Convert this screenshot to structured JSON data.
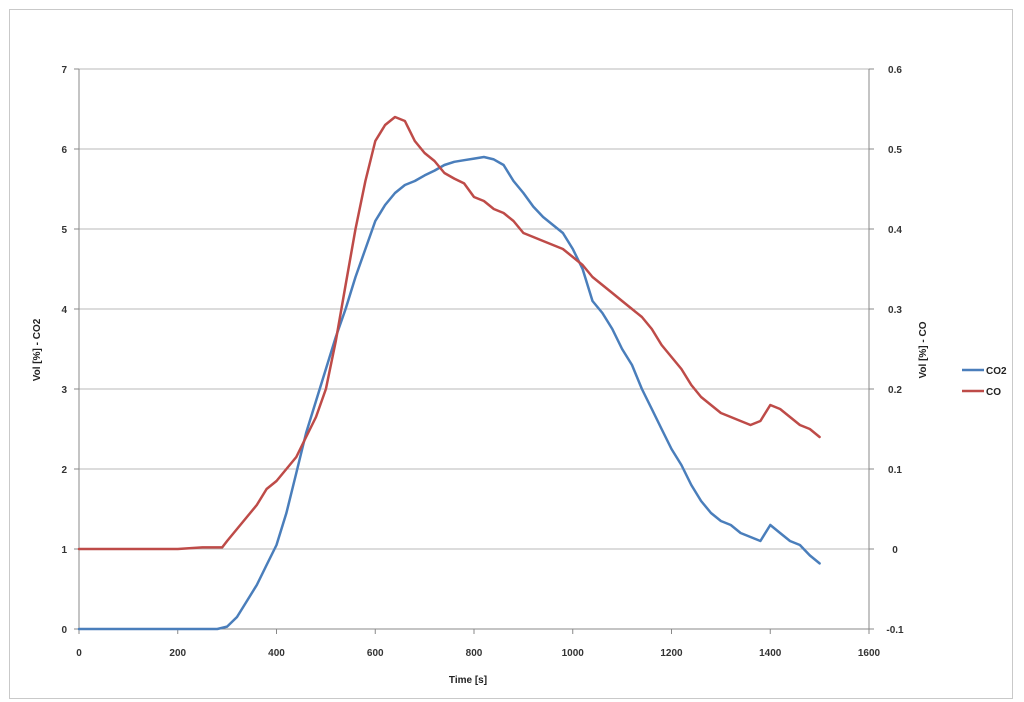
{
  "chart_data": {
    "type": "line",
    "xlabel": "Time [s]",
    "ylabel_left": "Vol [%] - CO2",
    "ylabel_right": "Vol [%] - CO",
    "xlim": [
      0,
      1600
    ],
    "ylim_left": [
      0,
      7
    ],
    "ylim_right": [
      -0.1,
      0.6
    ],
    "x_ticks": [
      "0",
      "200",
      "400",
      "600",
      "800",
      "1000",
      "1200",
      "1400",
      "1600"
    ],
    "y_left_ticks": [
      "0",
      "1",
      "2",
      "3",
      "4",
      "5",
      "6",
      "7"
    ],
    "y_right_ticks": [
      "-0.1",
      "0",
      "0.1",
      "0.2",
      "0.3",
      "0.4",
      "0.5",
      "0.6"
    ],
    "grid": "horizontal",
    "legend_position": "right",
    "series": [
      {
        "name": "CO2",
        "axis": "left",
        "color": "#4a7ebb",
        "points": [
          [
            0,
            0
          ],
          [
            100,
            0
          ],
          [
            200,
            0
          ],
          [
            280,
            0
          ],
          [
            300,
            0.03
          ],
          [
            320,
            0.15
          ],
          [
            340,
            0.35
          ],
          [
            360,
            0.55
          ],
          [
            380,
            0.8
          ],
          [
            400,
            1.05
          ],
          [
            420,
            1.45
          ],
          [
            440,
            1.95
          ],
          [
            460,
            2.45
          ],
          [
            480,
            2.85
          ],
          [
            500,
            3.25
          ],
          [
            520,
            3.65
          ],
          [
            540,
            4.0
          ],
          [
            560,
            4.4
          ],
          [
            580,
            4.75
          ],
          [
            600,
            5.1
          ],
          [
            620,
            5.3
          ],
          [
            640,
            5.45
          ],
          [
            660,
            5.55
          ],
          [
            680,
            5.6
          ],
          [
            700,
            5.67
          ],
          [
            720,
            5.73
          ],
          [
            740,
            5.8
          ],
          [
            760,
            5.84
          ],
          [
            780,
            5.86
          ],
          [
            800,
            5.88
          ],
          [
            820,
            5.9
          ],
          [
            840,
            5.87
          ],
          [
            860,
            5.8
          ],
          [
            880,
            5.6
          ],
          [
            900,
            5.45
          ],
          [
            920,
            5.28
          ],
          [
            940,
            5.15
          ],
          [
            960,
            5.05
          ],
          [
            980,
            4.95
          ],
          [
            1000,
            4.75
          ],
          [
            1020,
            4.5
          ],
          [
            1040,
            4.1
          ],
          [
            1060,
            3.95
          ],
          [
            1080,
            3.75
          ],
          [
            1100,
            3.5
          ],
          [
            1120,
            3.3
          ],
          [
            1140,
            3.0
          ],
          [
            1160,
            2.75
          ],
          [
            1180,
            2.5
          ],
          [
            1200,
            2.25
          ],
          [
            1220,
            2.05
          ],
          [
            1240,
            1.8
          ],
          [
            1260,
            1.6
          ],
          [
            1280,
            1.45
          ],
          [
            1300,
            1.35
          ],
          [
            1320,
            1.3
          ],
          [
            1340,
            1.2
          ],
          [
            1360,
            1.15
          ],
          [
            1380,
            1.1
          ],
          [
            1400,
            1.3
          ],
          [
            1420,
            1.2
          ],
          [
            1440,
            1.1
          ],
          [
            1460,
            1.05
          ],
          [
            1480,
            0.92
          ],
          [
            1500,
            0.82
          ]
        ]
      },
      {
        "name": "CO",
        "axis": "right",
        "color": "#be4b48",
        "points": [
          [
            0,
            0
          ],
          [
            50,
            0
          ],
          [
            100,
            0
          ],
          [
            150,
            0
          ],
          [
            200,
            0
          ],
          [
            250,
            0.002
          ],
          [
            290,
            0.002
          ],
          [
            300,
            0.01
          ],
          [
            320,
            0.025
          ],
          [
            340,
            0.04
          ],
          [
            360,
            0.055
          ],
          [
            380,
            0.075
          ],
          [
            400,
            0.085
          ],
          [
            420,
            0.1
          ],
          [
            440,
            0.115
          ],
          [
            460,
            0.14
          ],
          [
            480,
            0.165
          ],
          [
            500,
            0.2
          ],
          [
            520,
            0.26
          ],
          [
            540,
            0.33
          ],
          [
            560,
            0.4
          ],
          [
            580,
            0.46
          ],
          [
            600,
            0.51
          ],
          [
            620,
            0.53
          ],
          [
            640,
            0.54
          ],
          [
            660,
            0.535
          ],
          [
            680,
            0.51
          ],
          [
            700,
            0.495
          ],
          [
            720,
            0.485
          ],
          [
            740,
            0.47
          ],
          [
            760,
            0.463
          ],
          [
            780,
            0.457
          ],
          [
            800,
            0.44
          ],
          [
            820,
            0.435
          ],
          [
            840,
            0.425
          ],
          [
            860,
            0.42
          ],
          [
            880,
            0.41
          ],
          [
            900,
            0.395
          ],
          [
            920,
            0.39
          ],
          [
            940,
            0.385
          ],
          [
            960,
            0.38
          ],
          [
            980,
            0.375
          ],
          [
            1000,
            0.365
          ],
          [
            1020,
            0.355
          ],
          [
            1040,
            0.34
          ],
          [
            1060,
            0.33
          ],
          [
            1080,
            0.32
          ],
          [
            1100,
            0.31
          ],
          [
            1120,
            0.3
          ],
          [
            1140,
            0.29
          ],
          [
            1160,
            0.275
          ],
          [
            1180,
            0.255
          ],
          [
            1200,
            0.24
          ],
          [
            1220,
            0.225
          ],
          [
            1240,
            0.205
          ],
          [
            1260,
            0.19
          ],
          [
            1280,
            0.18
          ],
          [
            1300,
            0.17
          ],
          [
            1320,
            0.165
          ],
          [
            1340,
            0.16
          ],
          [
            1360,
            0.155
          ],
          [
            1380,
            0.16
          ],
          [
            1400,
            0.18
          ],
          [
            1420,
            0.175
          ],
          [
            1440,
            0.165
          ],
          [
            1460,
            0.155
          ],
          [
            1480,
            0.15
          ],
          [
            1500,
            0.14
          ]
        ]
      }
    ]
  }
}
